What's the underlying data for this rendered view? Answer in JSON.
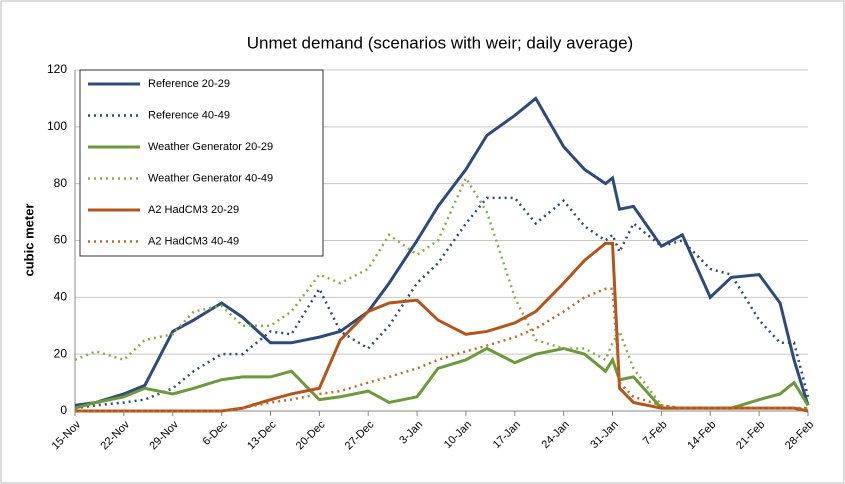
{
  "chart_data": {
    "type": "line",
    "title": "Unmet demand (scenarios with weir; daily average)",
    "y_label": "cubic meter",
    "x": [
      0,
      3,
      7,
      10,
      14,
      17,
      21,
      24,
      28,
      31,
      35,
      38,
      42,
      45,
      49,
      52,
      56,
      59,
      63,
      66,
      70,
      73,
      76,
      77,
      78,
      80,
      84,
      87,
      91,
      94,
      98,
      101,
      103,
      105
    ],
    "xlim": [
      0,
      105
    ],
    "xticks": [
      {
        "value": 0,
        "label": "15-Nov"
      },
      {
        "value": 7,
        "label": "22-Nov"
      },
      {
        "value": 14,
        "label": "29-Nov"
      },
      {
        "value": 21,
        "label": "6-Dec"
      },
      {
        "value": 28,
        "label": "13-Dec"
      },
      {
        "value": 35,
        "label": "20-Dec"
      },
      {
        "value": 42,
        "label": "27-Dec"
      },
      {
        "value": 49,
        "label": "3-Jan"
      },
      {
        "value": 56,
        "label": "10-Jan"
      },
      {
        "value": 63,
        "label": "17-Jan"
      },
      {
        "value": 70,
        "label": "24-Jan"
      },
      {
        "value": 77,
        "label": "31-Jan"
      },
      {
        "value": 84,
        "label": "7-Feb"
      },
      {
        "value": 91,
        "label": "14-Feb"
      },
      {
        "value": 98,
        "label": "21-Feb"
      },
      {
        "value": 105,
        "label": "28-Feb"
      }
    ],
    "ylim": [
      0,
      120
    ],
    "yticks": [
      0,
      20,
      40,
      60,
      80,
      100,
      120
    ],
    "grid": true,
    "series": [
      {
        "name": "Reference 20-29",
        "color": "#2e4a7a",
        "dash": false,
        "values": [
          2,
          3,
          6,
          9,
          28,
          32,
          38,
          33,
          24,
          24,
          26,
          28,
          35,
          45,
          60,
          72,
          85,
          97,
          104,
          110,
          93,
          85,
          80,
          82,
          71,
          72,
          58,
          62,
          40,
          47,
          48,
          38,
          18,
          2
        ]
      },
      {
        "name": "Reference 40-49",
        "color": "#2e4a7a",
        "dash": true,
        "values": [
          1,
          2,
          3,
          4,
          8,
          14,
          20,
          20,
          28,
          27,
          43,
          28,
          22,
          30,
          45,
          52,
          66,
          75,
          75,
          66,
          74,
          65,
          60,
          62,
          56,
          66,
          58,
          60,
          50,
          48,
          32,
          24,
          24,
          5
        ]
      },
      {
        "name": "Weather Generator 20-29",
        "color": "#6b9a3a",
        "dash": false,
        "values": [
          1,
          3,
          5,
          8,
          6,
          8,
          11,
          12,
          12,
          14,
          4,
          5,
          7,
          3,
          5,
          15,
          18,
          22,
          17,
          20,
          22,
          20,
          14,
          18,
          11,
          12,
          1,
          1,
          1,
          1,
          4,
          6,
          10,
          2
        ]
      },
      {
        "name": "Weather Generator 40-49",
        "color": "#8aac4e",
        "dash": true,
        "values": [
          18,
          21,
          18,
          25,
          27,
          35,
          37,
          30,
          30,
          35,
          48,
          45,
          50,
          62,
          55,
          60,
          82,
          70,
          40,
          25,
          22,
          22,
          18,
          24,
          28,
          15,
          2,
          1,
          1,
          1,
          1,
          1,
          1,
          1
        ]
      },
      {
        "name": "A2 HadCM3 20-29",
        "color": "#b5541a",
        "dash": false,
        "values": [
          0,
          0,
          0,
          0,
          0,
          0,
          0,
          1,
          4,
          6,
          8,
          25,
          35,
          38,
          39,
          32,
          27,
          28,
          31,
          35,
          45,
          53,
          59,
          59,
          8,
          3,
          1,
          1,
          1,
          1,
          1,
          1,
          1,
          0
        ]
      },
      {
        "name": "A2 HadCM3 40-49",
        "color": "#c4662a",
        "dash": true,
        "values": [
          0,
          0,
          0,
          0,
          0,
          0,
          0,
          1,
          3,
          4,
          6,
          7,
          10,
          12,
          15,
          18,
          21,
          23,
          26,
          29,
          35,
          40,
          43,
          43,
          10,
          5,
          2,
          1,
          1,
          1,
          1,
          1,
          1,
          1
        ]
      }
    ]
  }
}
